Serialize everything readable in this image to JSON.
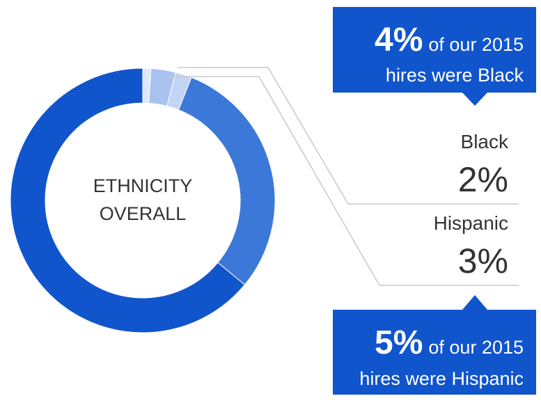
{
  "chart_data": {
    "type": "donut",
    "center_label": [
      "ETHNICITY",
      "OVERALL"
    ],
    "categories": [
      null,
      "Hispanic",
      "Black",
      null,
      null
    ],
    "values": [
      1,
      3,
      2,
      30,
      64
    ],
    "value_labels": [
      null,
      "3%",
      "2%",
      null,
      null
    ],
    "colors": [
      "#dfe8f8",
      "#a7c2ef",
      "#c3d5f5",
      "#3c78d8",
      "#1155cc"
    ],
    "callouts": [
      {
        "highlight": "4%",
        "lines": [
          "of our 2015",
          "hires were Black"
        ]
      },
      {
        "highlight": "5%",
        "lines": [
          "of our 2015",
          "hires were Hispanic"
        ]
      }
    ]
  }
}
